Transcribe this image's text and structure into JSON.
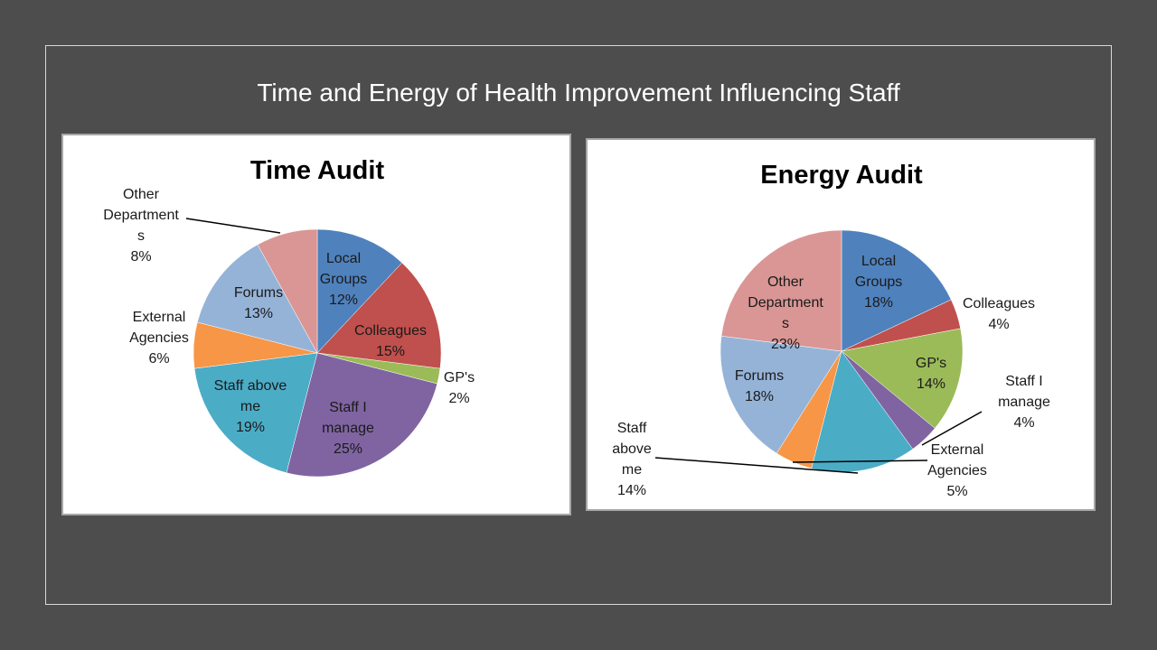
{
  "slide_title": "Time and Energy of Health Improvement Influencing Staff",
  "chart_data": [
    {
      "type": "pie",
      "title": "Time Audit",
      "slices": [
        {
          "label": [
            "Local",
            "Groups"
          ],
          "pct": "12%",
          "value": 12,
          "color": "#4f81bd"
        },
        {
          "label": [
            "Colleagues"
          ],
          "pct": "15%",
          "value": 15,
          "color": "#c0504d"
        },
        {
          "label": [
            "GP's"
          ],
          "pct": "2%",
          "value": 2,
          "color": "#9bbb59"
        },
        {
          "label": [
            "Staff I",
            "manage"
          ],
          "pct": "25%",
          "value": 25,
          "color": "#8064a2"
        },
        {
          "label": [
            "Staff above",
            "me"
          ],
          "pct": "19%",
          "value": 19,
          "color": "#4bacc6"
        },
        {
          "label": [
            "External",
            "Agencies"
          ],
          "pct": "6%",
          "value": 6,
          "color": "#f79646"
        },
        {
          "label": [
            "Forums"
          ],
          "pct": "13%",
          "value": 13,
          "color": "#95b3d7"
        },
        {
          "label": [
            "Other",
            "Department",
            "s"
          ],
          "pct": "8%",
          "value": 8,
          "color": "#d99694"
        }
      ]
    },
    {
      "type": "pie",
      "title": "Energy Audit",
      "slices": [
        {
          "label": [
            "Local",
            "Groups"
          ],
          "pct": "18%",
          "value": 18,
          "color": "#4f81bd"
        },
        {
          "label": [
            "Colleagues"
          ],
          "pct": "4%",
          "value": 4,
          "color": "#c0504d"
        },
        {
          "label": [
            "GP's"
          ],
          "pct": "14%",
          "value": 14,
          "color": "#9bbb59"
        },
        {
          "label": [
            "Staff I",
            "manage"
          ],
          "pct": "4%",
          "value": 4,
          "color": "#8064a2"
        },
        {
          "label": [
            "Staff",
            "above",
            "me"
          ],
          "pct": "14%",
          "value": 14,
          "color": "#4bacc6"
        },
        {
          "label": [
            "External",
            "Agencies"
          ],
          "pct": "5%",
          "value": 5,
          "color": "#f79646"
        },
        {
          "label": [
            "Forums"
          ],
          "pct": "18%",
          "value": 18,
          "color": "#95b3d7"
        },
        {
          "label": [
            "Other",
            "Department",
            "s"
          ],
          "pct": "23%",
          "value": 23,
          "color": "#d99694"
        }
      ]
    }
  ]
}
